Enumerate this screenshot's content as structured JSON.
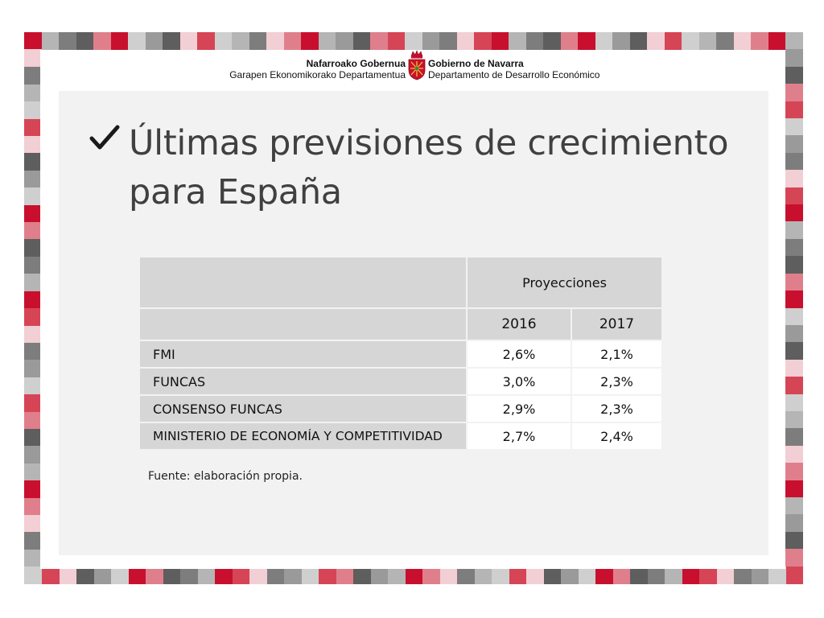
{
  "header": {
    "left_line1": "Nafarroako Gobernua",
    "left_line2": "Garapen Ekonomikorako Departamentua",
    "right_line1": "Gobierno de Navarra",
    "right_line2": "Departamento de Desarrollo Económico",
    "emblem_icon": "navarra-coat-of-arms-icon"
  },
  "slide": {
    "title": "Últimas previsiones de crecimiento para España",
    "bullet_icon": "checkmark-icon"
  },
  "table": {
    "group_header": "Proyecciones",
    "columns": [
      "2016",
      "2017"
    ],
    "rows": [
      {
        "label": "FMI",
        "values": [
          "2,6%",
          "2,1%"
        ]
      },
      {
        "label": "FUNCAS",
        "values": [
          "3,0%",
          "2,3%"
        ]
      },
      {
        "label": "CONSENSO FUNCAS",
        "values": [
          "2,9%",
          "2,3%"
        ]
      },
      {
        "label": "MINISTERIO DE ECONOMÍA Y COMPETITIVIDAD",
        "values": [
          "2,7%",
          "2,4%"
        ]
      }
    ]
  },
  "source": "Fuente: elaboración propia.",
  "colors": {
    "border_palette": [
      "#c8102e",
      "#d64556",
      "#e07f8c",
      "#f2cfd4",
      "#5e5e5e",
      "#7d7d7d",
      "#9a9a9a",
      "#b5b5b5",
      "#cfcfcf"
    ],
    "panel": "#f2f2f2",
    "header_cell": "#d6d6d6"
  }
}
